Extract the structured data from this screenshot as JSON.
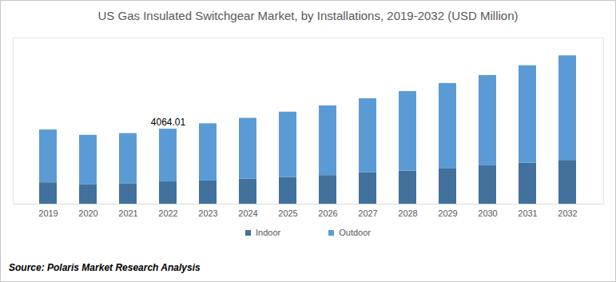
{
  "chart_data": {
    "type": "bar",
    "title": "US Gas Insulated Switchgear Market, by Installations, 2019-2032 (USD Million)",
    "caption": "Source: Polaris Market Research Analysis",
    "categories": [
      "2019",
      "2020",
      "2021",
      "2022",
      "2023",
      "2024",
      "2025",
      "2026",
      "2027",
      "2028",
      "2029",
      "2030",
      "2031",
      "2032"
    ],
    "series": [
      {
        "name": "Indoor",
        "color": "#41719c",
        "values": [
          1160,
          1065,
          1110,
          1210,
          1260,
          1355,
          1450,
          1550,
          1695,
          1790,
          1935,
          2080,
          2225,
          2370
        ]
      },
      {
        "name": "Outdoor",
        "color": "#5b9bd5",
        "values": [
          2860,
          2665,
          2715,
          2854.01,
          3095,
          3295,
          3535,
          3775,
          4015,
          4310,
          4600,
          4890,
          5275,
          5665
        ]
      }
    ],
    "annotations": [
      {
        "category": "2022",
        "value": 4064.01,
        "text": "4064.01"
      }
    ],
    "ylim": [
      0,
      9000
    ],
    "yticks": [],
    "stacked": true,
    "grid": false,
    "legend": "bottom",
    "tick_labels": "x"
  }
}
